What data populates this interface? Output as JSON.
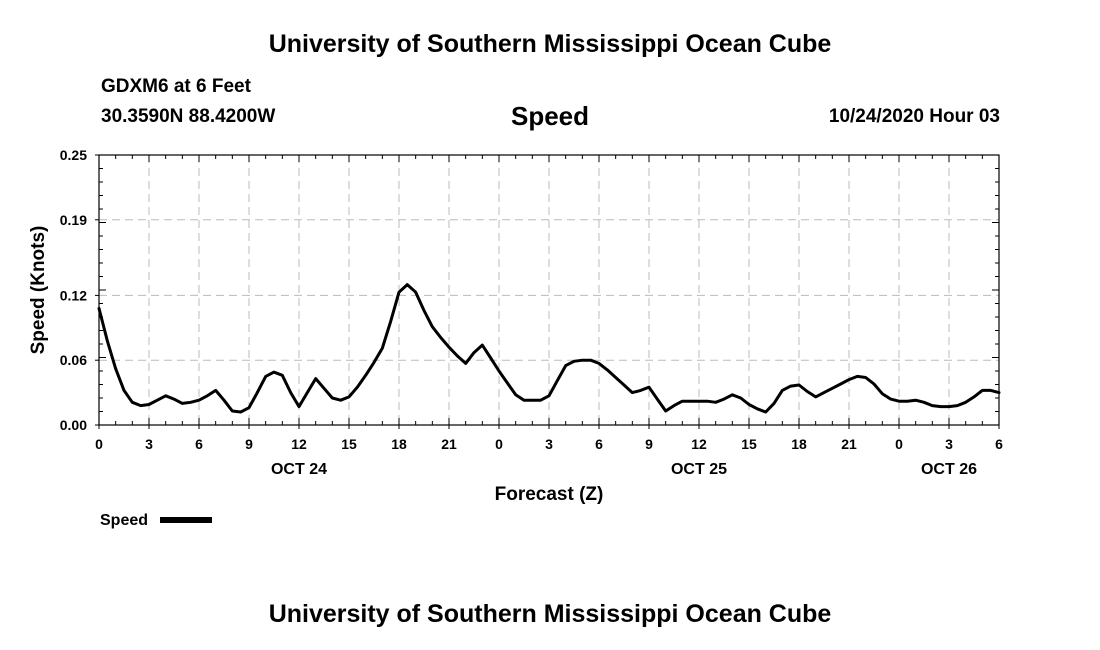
{
  "header": {
    "top_title": "University of Southern Mississippi Ocean Cube",
    "station": "GDXM6 at 6 Feet",
    "coords": "30.3590N 88.4200W",
    "variable_title": "Speed",
    "datetime": "10/24/2020 Hour 03",
    "bottom_title": "University of Southern Mississippi Ocean Cube"
  },
  "colors": {
    "line": "#000000",
    "grid": "#bbbbbb",
    "background": "#ffffff"
  },
  "chart_data": {
    "type": "line",
    "title": "Speed",
    "xlabel": "Forecast (Z)",
    "ylabel": "Speed (Knots)",
    "xlim": [
      0,
      54
    ],
    "ylim": [
      0,
      0.25
    ],
    "grid": true,
    "y_ticks": [
      0,
      0.06,
      0.12,
      0.19,
      0.25
    ],
    "y_tick_labels": [
      "0.00",
      "0.06",
      "0.12",
      "0.19",
      "0.25"
    ],
    "x_ticks": [
      0,
      3,
      6,
      9,
      12,
      15,
      18,
      21,
      24,
      27,
      30,
      33,
      36,
      39,
      42,
      45,
      48,
      51,
      54
    ],
    "x_tick_labels": [
      "0",
      "3",
      "6",
      "9",
      "12",
      "15",
      "18",
      "21",
      "0",
      "3",
      "6",
      "9",
      "12",
      "15",
      "18",
      "21",
      "0",
      "3",
      "6"
    ],
    "date_labels": [
      {
        "label": "OCT 24",
        "x": 12
      },
      {
        "label": "OCT 25",
        "x": 36
      },
      {
        "label": "OCT 26",
        "x": 51
      }
    ],
    "legend": {
      "label": "Speed",
      "placement": "bottom-left"
    },
    "series": [
      {
        "name": "Speed",
        "x": [
          0,
          0.5,
          1,
          1.5,
          2,
          2.5,
          3,
          3.5,
          4,
          4.5,
          5,
          5.5,
          6,
          6.5,
          7,
          7.5,
          8,
          8.5,
          9,
          9.5,
          10,
          10.5,
          11,
          11.5,
          12,
          12.5,
          13,
          13.5,
          14,
          14.5,
          15,
          15.5,
          16,
          16.5,
          17,
          17.5,
          18,
          18.5,
          19,
          19.5,
          20,
          20.5,
          21,
          21.5,
          22,
          22.5,
          23,
          23.5,
          24,
          24.5,
          25,
          25.5,
          26,
          26.5,
          27,
          27.5,
          28,
          28.5,
          29,
          29.5,
          30,
          30.5,
          31,
          31.5,
          32,
          32.5,
          33,
          33.5,
          34,
          34.5,
          35,
          35.5,
          36,
          36.5,
          37,
          37.5,
          38,
          38.5,
          39,
          39.5,
          40,
          40.5,
          41,
          41.5,
          42,
          42.5,
          43,
          43.5,
          44,
          44.5,
          45,
          45.5,
          46,
          46.5,
          47,
          47.5,
          48,
          48.5,
          49,
          49.5,
          50,
          50.5,
          51,
          51.5,
          52,
          52.5,
          53,
          53.5,
          54
        ],
        "values": [
          0.108,
          0.078,
          0.052,
          0.032,
          0.021,
          0.018,
          0.019,
          0.023,
          0.027,
          0.024,
          0.02,
          0.021,
          0.023,
          0.027,
          0.032,
          0.023,
          0.013,
          0.012,
          0.016,
          0.03,
          0.045,
          0.049,
          0.046,
          0.03,
          0.017,
          0.03,
          0.043,
          0.034,
          0.025,
          0.023,
          0.026,
          0.035,
          0.046,
          0.058,
          0.071,
          0.096,
          0.123,
          0.13,
          0.123,
          0.106,
          0.091,
          0.081,
          0.072,
          0.064,
          0.057,
          0.067,
          0.074,
          0.062,
          0.05,
          0.039,
          0.028,
          0.023,
          0.023,
          0.023,
          0.027,
          0.041,
          0.055,
          0.059,
          0.06,
          0.06,
          0.057,
          0.051,
          0.044,
          0.037,
          0.03,
          0.032,
          0.035,
          0.024,
          0.013,
          0.018,
          0.022,
          0.022,
          0.022,
          0.022,
          0.021,
          0.024,
          0.028,
          0.025,
          0.019,
          0.015,
          0.012,
          0.02,
          0.032,
          0.036,
          0.037,
          0.031,
          0.026,
          0.03,
          0.034,
          0.038,
          0.042,
          0.045,
          0.044,
          0.038,
          0.029,
          0.024,
          0.022,
          0.022,
          0.023,
          0.021,
          0.018,
          0.017,
          0.017,
          0.018,
          0.021,
          0.026,
          0.032,
          0.032,
          0.03
        ]
      }
    ]
  }
}
